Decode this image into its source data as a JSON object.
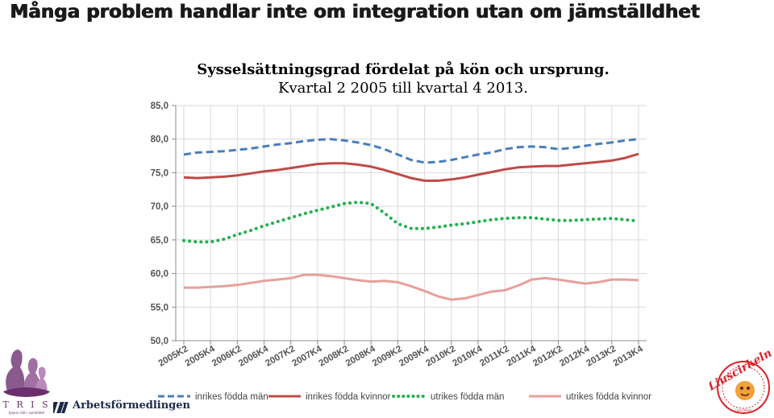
{
  "page": {
    "title": "Många problem handlar inte om integration utan om jämställdhet"
  },
  "chart_data": {
    "type": "line",
    "title": "Sysselsättningsgrad fördelat på kön och ursprung.",
    "subtitle": "Kvartal 2 2005 till kvartal 4 2013.",
    "xlabel": "",
    "ylabel": "",
    "ylim": [
      50,
      85
    ],
    "yticks": [
      "85,0",
      "80,0",
      "75,0",
      "70,0",
      "65,0",
      "60,0",
      "55,0",
      "50,0"
    ],
    "ytick_values": [
      85,
      80,
      75,
      70,
      65,
      60,
      55,
      50
    ],
    "grid": true,
    "legend_position": "bottom",
    "x": [
      "2005K2",
      "2005K3",
      "2005K4",
      "2006K1",
      "2006K2",
      "2006K3",
      "2006K4",
      "2007K1",
      "2007K2",
      "2007K3",
      "2007K4",
      "2008K1",
      "2008K2",
      "2008K3",
      "2008K4",
      "2009K1",
      "2009K2",
      "2009K3",
      "2009K4",
      "2010K1",
      "2010K2",
      "2010K3",
      "2010K4",
      "2011K1",
      "2011K2",
      "2011K3",
      "2011K4",
      "2012K1",
      "2012K2",
      "2012K3",
      "2012K4",
      "2013K1",
      "2013K2",
      "2013K3",
      "2013K4"
    ],
    "xtick_labels": [
      "2005K2",
      "2005K4",
      "2006K2",
      "2006K4",
      "2007K2",
      "2007K4",
      "2008K2",
      "2008K4",
      "2009K2",
      "2009K4",
      "2010K2",
      "2010K4",
      "2011K2",
      "2011K4",
      "2012K2",
      "2012K4",
      "2013K2",
      "2013K4"
    ],
    "series": [
      {
        "name": "inrikes födda män",
        "color": "#4a7ebb",
        "style": "dashed",
        "values": [
          77.7,
          78.0,
          78.1,
          78.2,
          78.4,
          78.6,
          78.9,
          79.2,
          79.4,
          79.7,
          79.9,
          80.0,
          79.8,
          79.5,
          79.1,
          78.5,
          77.7,
          76.9,
          76.5,
          76.6,
          76.9,
          77.3,
          77.7,
          78.0,
          78.5,
          78.8,
          78.9,
          78.8,
          78.5,
          78.7,
          79.0,
          79.3,
          79.5,
          79.8,
          80.0
        ]
      },
      {
        "name": "inrikes födda kvinnor",
        "color": "#be4b48",
        "style": "solid",
        "values": [
          74.3,
          74.2,
          74.3,
          74.4,
          74.6,
          74.9,
          75.2,
          75.4,
          75.7,
          76.0,
          76.3,
          76.4,
          76.4,
          76.2,
          75.9,
          75.4,
          74.8,
          74.2,
          73.8,
          73.8,
          74.0,
          74.3,
          74.7,
          75.1,
          75.5,
          75.8,
          75.9,
          76.0,
          76.0,
          76.2,
          76.4,
          76.6,
          76.8,
          77.2,
          77.8
        ]
      },
      {
        "name": "utrikes födda män",
        "color": "#22b14c",
        "style": "dotted",
        "values": [
          64.9,
          64.7,
          64.7,
          65.1,
          65.8,
          66.4,
          67.1,
          67.7,
          68.3,
          68.9,
          69.4,
          69.9,
          70.4,
          70.6,
          70.4,
          69.0,
          67.4,
          66.7,
          66.7,
          66.9,
          67.2,
          67.4,
          67.7,
          68.0,
          68.2,
          68.3,
          68.3,
          68.1,
          67.9,
          67.9,
          68.0,
          68.1,
          68.2,
          68.0,
          67.8
        ]
      },
      {
        "name": "utrikes födda kvinnor",
        "color": "#e6a09c",
        "style": "solid",
        "values": [
          57.9,
          57.9,
          58.0,
          58.1,
          58.3,
          58.6,
          58.9,
          59.1,
          59.3,
          59.8,
          59.8,
          59.6,
          59.3,
          59.0,
          58.8,
          58.9,
          58.7,
          58.1,
          57.4,
          56.6,
          56.1,
          56.3,
          56.8,
          57.3,
          57.5,
          58.2,
          59.1,
          59.3,
          59.1,
          58.8,
          58.5,
          58.7,
          59.1,
          59.1,
          59.0
        ]
      }
    ]
  },
  "logos": {
    "tris_word": "T R I S",
    "tris_sub": "tjejers rätt i samhället",
    "arbetsformedlingen": "Arbetsförmedlingen",
    "liuscirkeln": "Liuscirkeln",
    "liuscirkeln_sub": "Liuscirkeln"
  }
}
